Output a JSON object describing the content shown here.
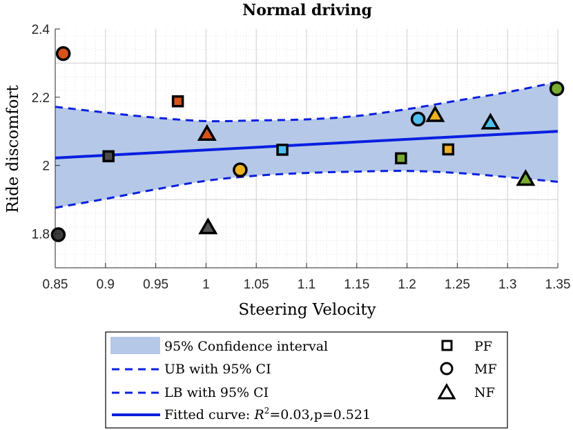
{
  "chart_data": {
    "type": "scatter",
    "title": "Normal driving",
    "xlabel": "Steering Velocity",
    "ylabel": "Ride discomfort",
    "xlim": [
      0.85,
      1.35
    ],
    "ylim": [
      1.7,
      2.4
    ],
    "xticks": [
      0.85,
      0.9,
      0.95,
      1,
      1.05,
      1.1,
      1.15,
      1.2,
      1.25,
      1.3,
      1.35
    ],
    "xtick_labels": [
      "0.85",
      "0.9",
      "0.95",
      "1",
      "1.05",
      "1.1",
      "1.15",
      "1.2",
      "1.25",
      "1.3",
      "1.35"
    ],
    "yticks": [
      1.8,
      2,
      2.2,
      2.4
    ],
    "ytick_labels": [
      "1.8",
      "2",
      "2.2",
      "2.4"
    ],
    "grid": true,
    "fit": {
      "x": [
        0.85,
        1.35
      ],
      "y": [
        2.022,
        2.1
      ]
    },
    "ci_upper": {
      "x": [
        0.85,
        0.9,
        0.95,
        1.0,
        1.05,
        1.1,
        1.15,
        1.2,
        1.25,
        1.3,
        1.35
      ],
      "y": [
        2.172,
        2.155,
        2.14,
        2.13,
        2.132,
        2.135,
        2.145,
        2.165,
        2.19,
        2.215,
        2.245
      ]
    },
    "ci_lower": {
      "x": [
        0.85,
        0.9,
        0.95,
        1.0,
        1.05,
        1.1,
        1.15,
        1.2,
        1.25,
        1.3,
        1.35
      ],
      "y": [
        1.876,
        1.902,
        1.93,
        1.955,
        1.97,
        1.978,
        1.982,
        1.984,
        1.978,
        1.966,
        1.952
      ]
    },
    "points": [
      {
        "x": 0.858,
        "y": 2.328,
        "marker": "circle",
        "color": "#d95319"
      },
      {
        "x": 0.853,
        "y": 1.797,
        "marker": "circle",
        "color": "#3d3d3d"
      },
      {
        "x": 0.903,
        "y": 2.027,
        "marker": "square",
        "color": "#4a4a4a"
      },
      {
        "x": 0.972,
        "y": 2.188,
        "marker": "square",
        "color": "#d95319"
      },
      {
        "x": 1.001,
        "y": 2.092,
        "marker": "triangle",
        "color": "#d95319"
      },
      {
        "x": 1.002,
        "y": 1.818,
        "marker": "triangle",
        "color": "#555555"
      },
      {
        "x": 1.034,
        "y": 1.987,
        "marker": "circle",
        "color": "#edb120"
      },
      {
        "x": 1.076,
        "y": 2.046,
        "marker": "square",
        "color": "#4dbeee"
      },
      {
        "x": 1.194,
        "y": 2.021,
        "marker": "square",
        "color": "#77ac30"
      },
      {
        "x": 1.211,
        "y": 2.136,
        "marker": "circle",
        "color": "#4dbeee"
      },
      {
        "x": 1.228,
        "y": 2.147,
        "marker": "triangle",
        "color": "#edb120"
      },
      {
        "x": 1.241,
        "y": 2.047,
        "marker": "square",
        "color": "#edb120"
      },
      {
        "x": 1.283,
        "y": 2.125,
        "marker": "triangle",
        "color": "#4dbeee"
      },
      {
        "x": 1.318,
        "y": 1.96,
        "marker": "triangle",
        "color": "#77ac30"
      },
      {
        "x": 1.349,
        "y": 2.225,
        "marker": "circle",
        "color": "#77ac30"
      }
    ],
    "legend": {
      "placement": "bottom",
      "ci_label": "95% Confidence interval",
      "ub_label": "UB with 95% CI",
      "lb_label": "LB with 95% CI",
      "fit_prefix": "Fitted curve: ",
      "r_symbol": "R",
      "r_exp": "2",
      "fit_stats": "=0.03,p=0.521",
      "markers": [
        {
          "marker": "square",
          "label": "PF"
        },
        {
          "marker": "circle",
          "label": "MF"
        },
        {
          "marker": "triangle",
          "label": "NF"
        }
      ]
    },
    "colors": {
      "band": "#b5c8e8",
      "line": "#0a1fe0",
      "grid_minor": "#d6d6d6",
      "grid_major": "#cfcfcf"
    }
  }
}
